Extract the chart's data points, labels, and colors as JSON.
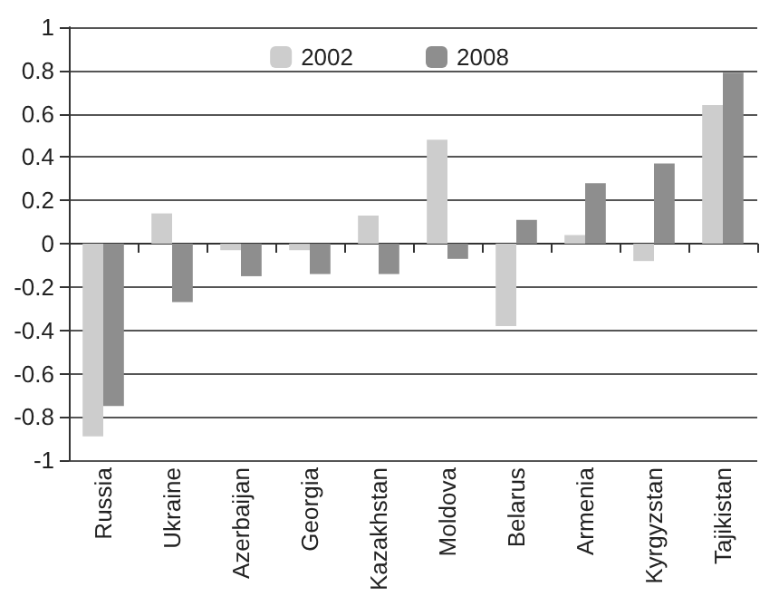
{
  "chart_data": {
    "type": "bar",
    "categories": [
      "Russia",
      "Ukraine",
      "Azerbaijan",
      "Georgia",
      "Kazakhstan",
      "Moldova",
      "Belarus",
      "Armenia",
      "Kyrgyzstan",
      "Tajikistan"
    ],
    "series": [
      {
        "name": "2002",
        "color": "#cdcdcd",
        "values": [
          -0.89,
          0.14,
          -0.03,
          -0.03,
          0.13,
          0.48,
          -0.38,
          0.04,
          -0.08,
          0.64
        ]
      },
      {
        "name": "2008",
        "color": "#8e8e8e",
        "values": [
          -0.75,
          -0.27,
          -0.15,
          -0.14,
          -0.14,
          -0.07,
          0.11,
          0.28,
          0.37,
          0.79
        ]
      }
    ],
    "ylim": [
      -1,
      1
    ],
    "yticks": [
      -1,
      -0.8,
      -0.6,
      -0.4,
      -0.2,
      0,
      0.2,
      0.4,
      0.6,
      0.8,
      1
    ],
    "grid": "y",
    "legend": "top"
  }
}
